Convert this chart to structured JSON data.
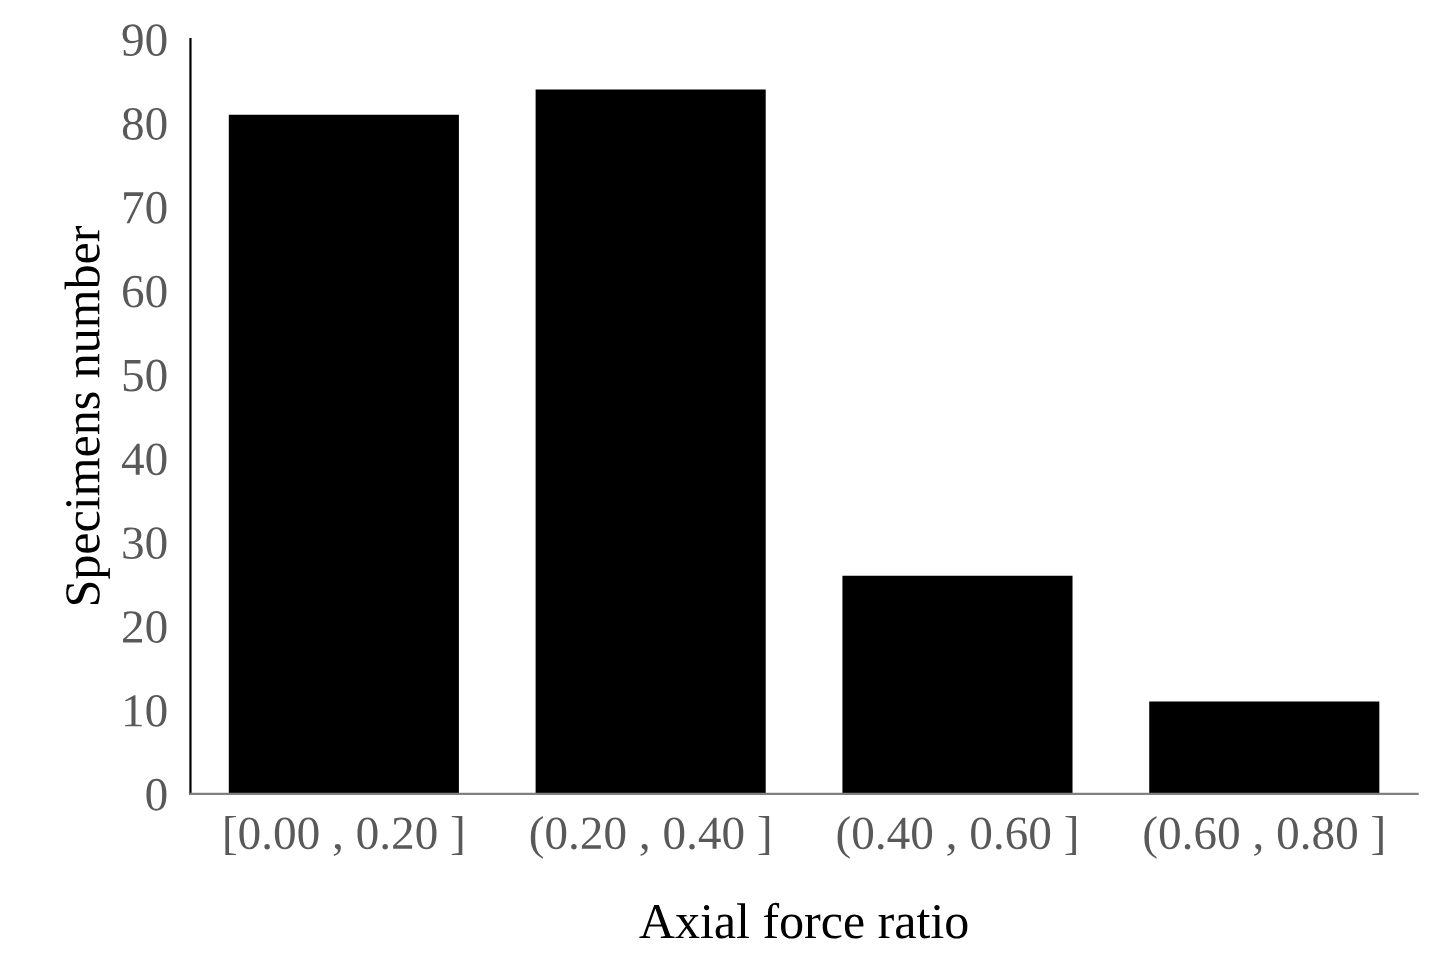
{
  "chart_data": {
    "type": "bar",
    "xlabel": "Axial force ratio",
    "ylabel": "Specimens number",
    "categories": [
      "[0.00 , 0.20 ]",
      "(0.20 , 0.40 ]",
      "(0.40 , 0.60 ]",
      "(0.60 , 0.80 ]"
    ],
    "values": [
      81,
      84,
      26,
      11
    ],
    "color": "#000000",
    "ylim": [
      0,
      90
    ],
    "yticks": [
      0,
      10,
      20,
      30,
      40,
      50,
      60,
      70,
      80,
      90
    ],
    "grid": false,
    "legend": false
  }
}
